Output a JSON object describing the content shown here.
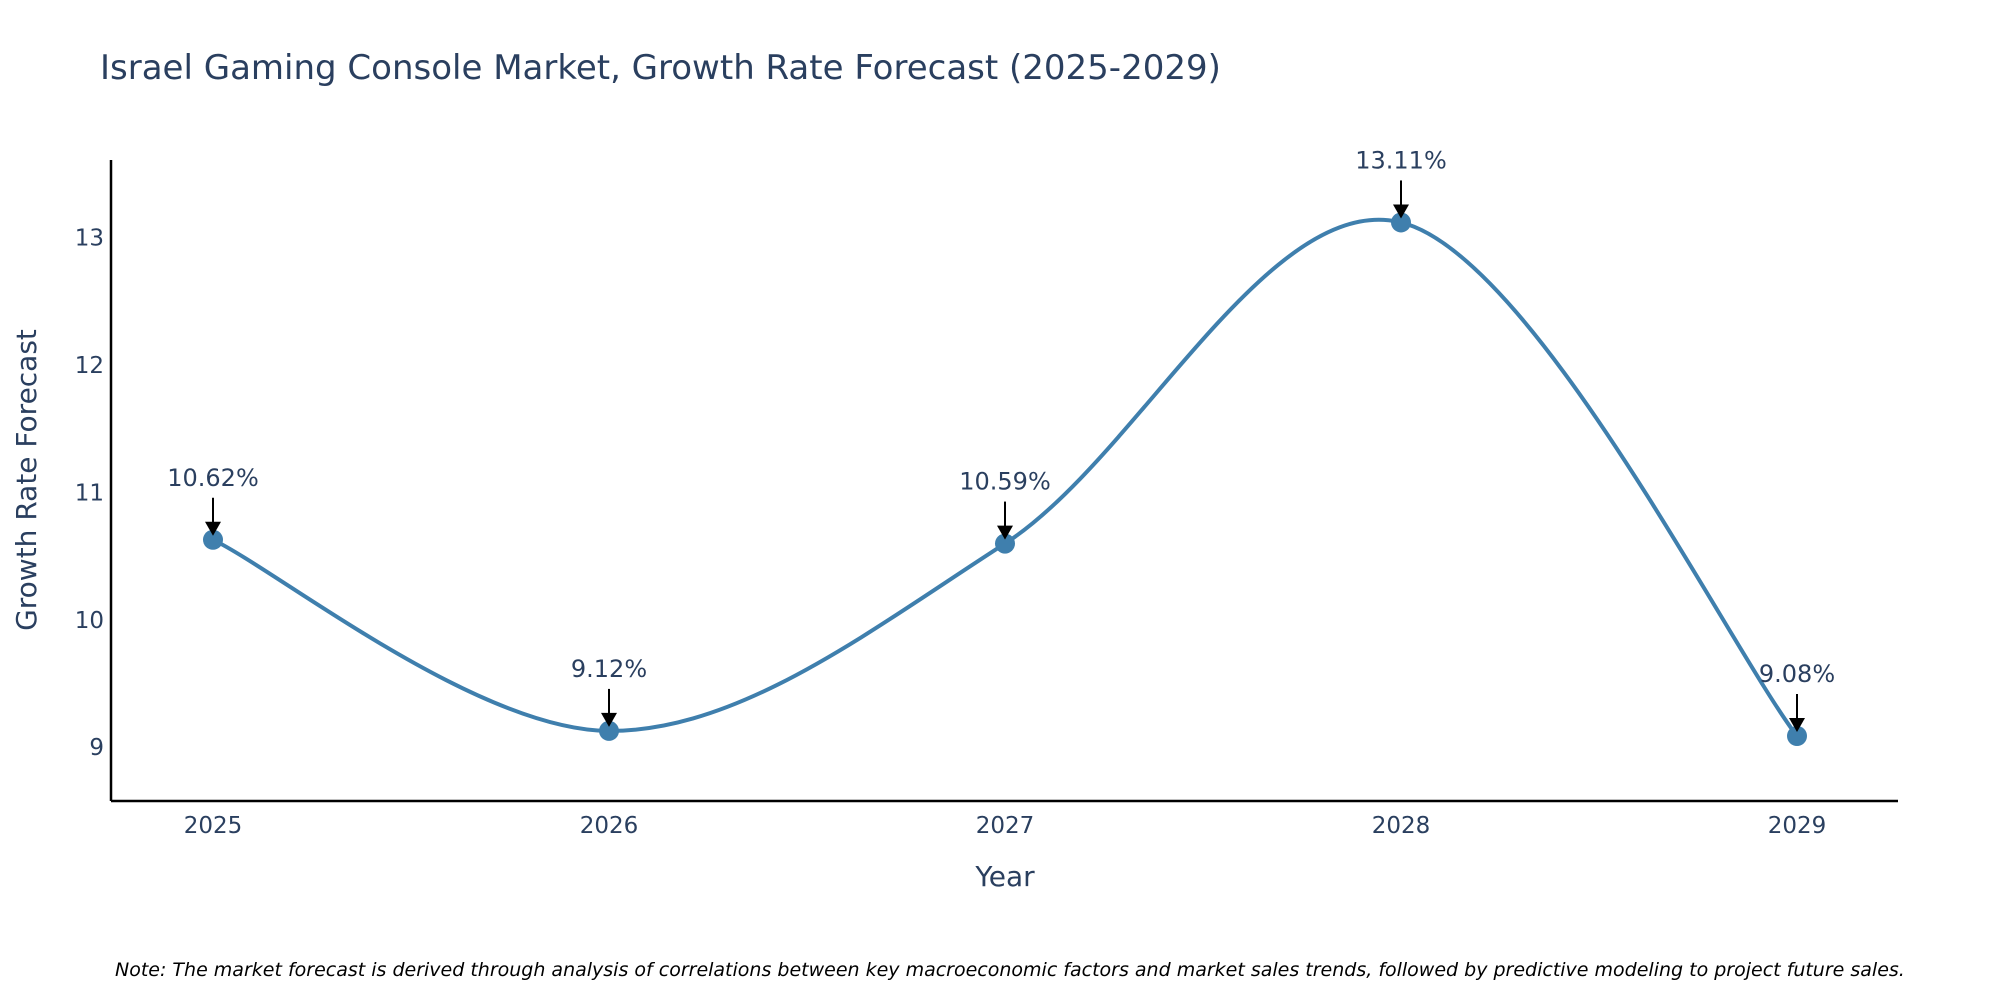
{
  "chart_data": {
    "type": "line",
    "title": "Israel Gaming Console Market, Growth Rate Forecast (2025-2029)",
    "xlabel": "Year",
    "ylabel": "Growth Rate Forecast",
    "categories": [
      "2025",
      "2026",
      "2027",
      "2028",
      "2029"
    ],
    "series": [
      {
        "name": "Growth Rate Forecast",
        "values": [
          10.62,
          9.12,
          10.59,
          13.11,
          9.08
        ]
      }
    ],
    "data_labels": [
      "10.62%",
      "9.12%",
      "10.59%",
      "13.11%",
      "9.08%"
    ],
    "ylim": [
      8.57,
      13.6
    ],
    "yticks": [
      9,
      10,
      11,
      12,
      13
    ],
    "grid": false,
    "line_shape": "spline",
    "note": "Note: The market forecast is derived through analysis of correlations between key macroeconomic factors and market sales trends, followed by predictive modeling to project future sales.",
    "colors": {
      "line": "#3f7fad",
      "marker": "#3f7fad",
      "text": "#2a3f5f",
      "axis": "#000000",
      "arrow": "#000000"
    }
  }
}
